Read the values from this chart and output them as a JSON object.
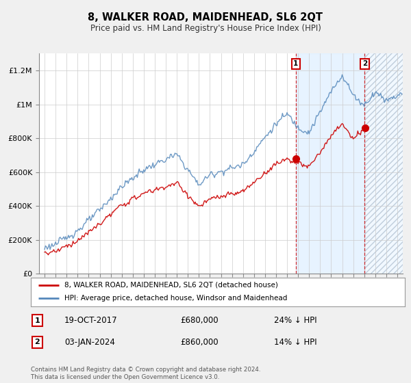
{
  "title": "8, WALKER ROAD, MAIDENHEAD, SL6 2QT",
  "subtitle": "Price paid vs. HM Land Registry's House Price Index (HPI)",
  "legend_line1": "8, WALKER ROAD, MAIDENHEAD, SL6 2QT (detached house)",
  "legend_line2": "HPI: Average price, detached house, Windsor and Maidenhead",
  "annotation1_date": "19-OCT-2017",
  "annotation1_price": "£680,000",
  "annotation1_hpi": "24% ↓ HPI",
  "annotation2_date": "03-JAN-2024",
  "annotation2_price": "£860,000",
  "annotation2_hpi": "14% ↓ HPI",
  "sale1_year": 2017.8,
  "sale1_value": 680000,
  "sale2_year": 2024.05,
  "sale2_value": 860000,
  "ylim": [
    0,
    1300000
  ],
  "xlim_start": 1994.5,
  "xlim_end": 2027.5,
  "blue_shade_start": 2017.8,
  "hatch_start": 2024.05,
  "red_color": "#cc0000",
  "blue_color": "#5588bb",
  "blue_shade_color": "#ddeeff",
  "hatch_color": "#bbccdd",
  "footnote": "Contains HM Land Registry data © Crown copyright and database right 2024.\nThis data is licensed under the Open Government Licence v3.0.",
  "bg_color": "#f0f0f0",
  "plot_bg": "#ffffff",
  "grid_color": "#cccccc"
}
